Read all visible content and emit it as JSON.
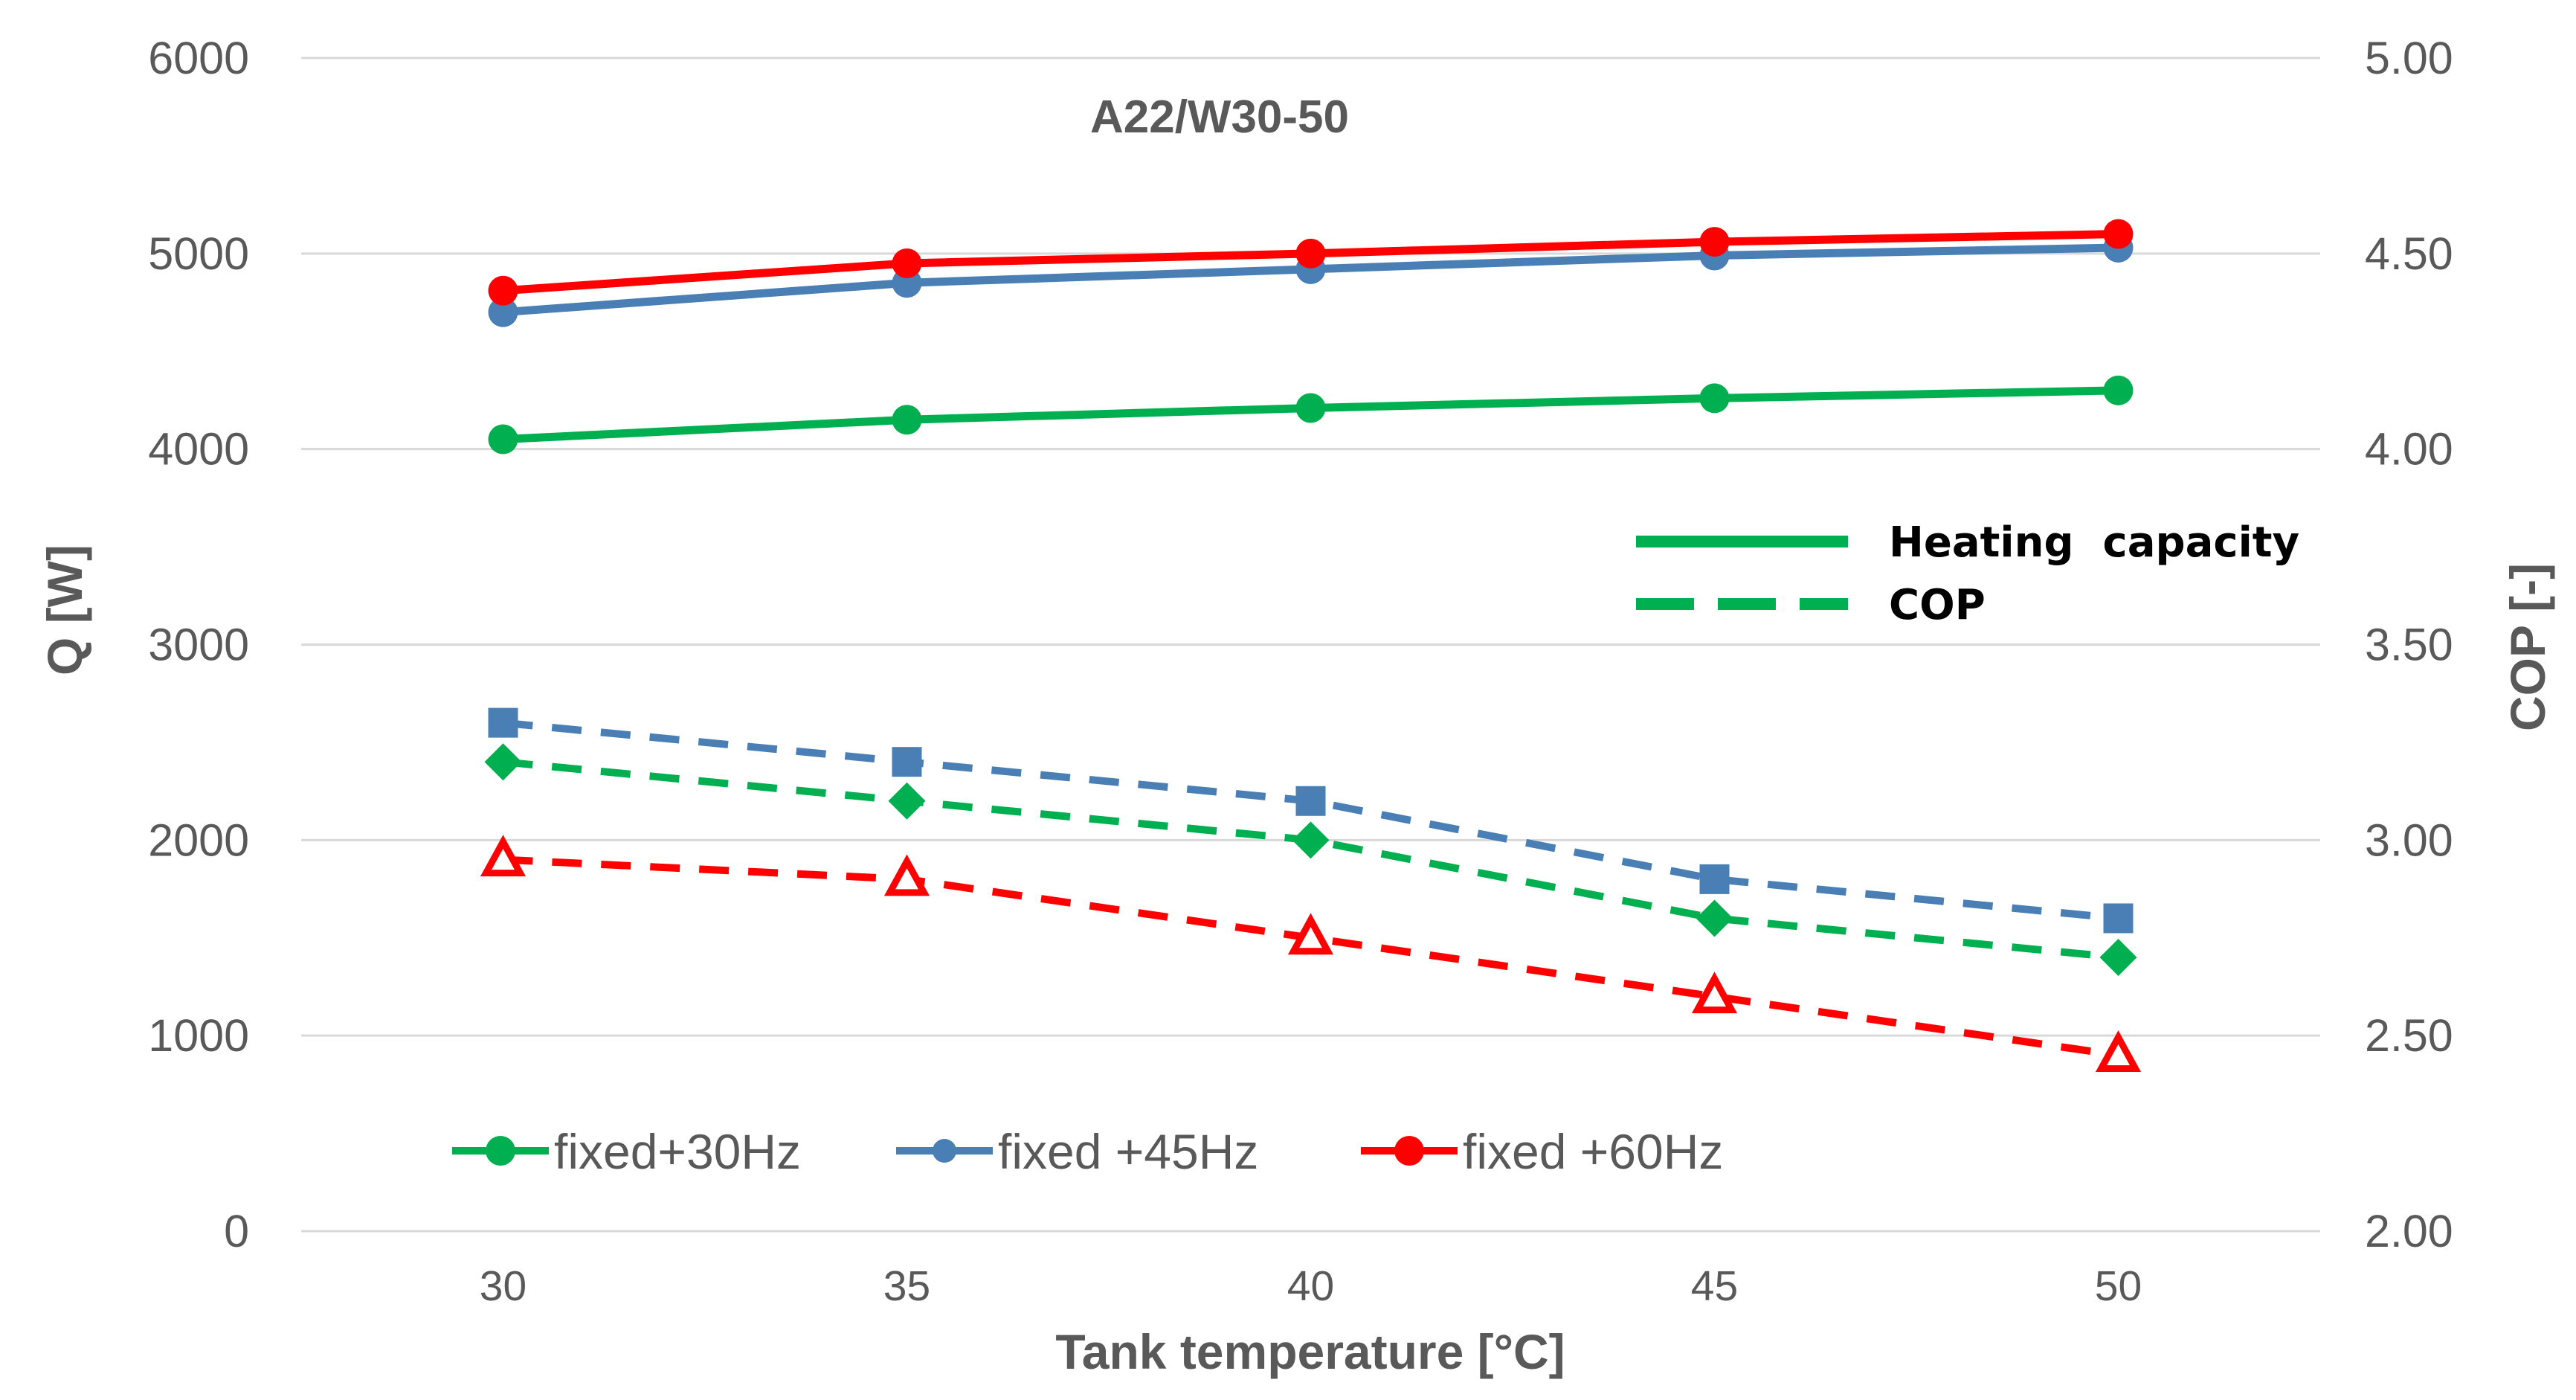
{
  "chart_data": {
    "type": "line",
    "title": "A22/W30-50",
    "xlabel": "Tank temperature  [°C]",
    "ylabel": "Q [W]",
    "y2label": "COP [-]",
    "x": [
      30,
      35,
      40,
      45,
      50
    ],
    "xlim": [
      27.5,
      52.5
    ],
    "ylim": [
      0,
      6000
    ],
    "y2lim": [
      2.0,
      5.0
    ],
    "yticks": [
      "0",
      "1000",
      "2000",
      "3000",
      "4000",
      "5000",
      "6000"
    ],
    "y2ticks": [
      "2.00",
      "2.50",
      "3.00",
      "3.50",
      "4.00",
      "4.50",
      "5.00"
    ],
    "grid": true,
    "series": [
      {
        "name": "fixed+30Hz",
        "metric": "Heating capacity",
        "axis": "left",
        "color": "#00b050",
        "marker": "circle",
        "style": "solid",
        "values": [
          4050,
          4150,
          4210,
          4260,
          4300
        ]
      },
      {
        "name": "fixed +45Hz",
        "metric": "Heating capacity",
        "axis": "left",
        "color": "#4a7fb5",
        "marker": "circle",
        "style": "solid",
        "values": [
          4700,
          4850,
          4920,
          4990,
          5030
        ]
      },
      {
        "name": "fixed +60Hz",
        "metric": "Heating capacity",
        "axis": "left",
        "color": "#ff0000",
        "marker": "circle",
        "style": "solid",
        "values": [
          4810,
          4950,
          5000,
          5060,
          5100
        ]
      },
      {
        "name": "fixed+30Hz",
        "metric": "COP",
        "axis": "right",
        "color": "#00b050",
        "marker": "diamond",
        "style": "dashed",
        "values": [
          3.2,
          3.1,
          3.0,
          2.8,
          2.7
        ]
      },
      {
        "name": "fixed +45Hz",
        "metric": "COP",
        "axis": "right",
        "color": "#4a7fb5",
        "marker": "square",
        "style": "dashed",
        "values": [
          3.3,
          3.2,
          3.1,
          2.9,
          2.8
        ]
      },
      {
        "name": "fixed +60Hz",
        "metric": "COP",
        "axis": "right",
        "color": "#ff0000",
        "marker": "triangle",
        "style": "dashed",
        "values": [
          2.95,
          2.9,
          2.75,
          2.6,
          2.45
        ]
      }
    ],
    "legend_style": {
      "position": "upper-right",
      "items": [
        "Heating  capacity",
        "COP"
      ],
      "color": "#00b050"
    },
    "legend_series": {
      "position": "bottom-left",
      "items": [
        {
          "label": "fixed+30Hz",
          "color": "#00b050"
        },
        {
          "label": "fixed +45Hz",
          "color": "#4a7fb5"
        },
        {
          "label": "fixed +60Hz",
          "color": "#ff0000"
        }
      ]
    }
  }
}
